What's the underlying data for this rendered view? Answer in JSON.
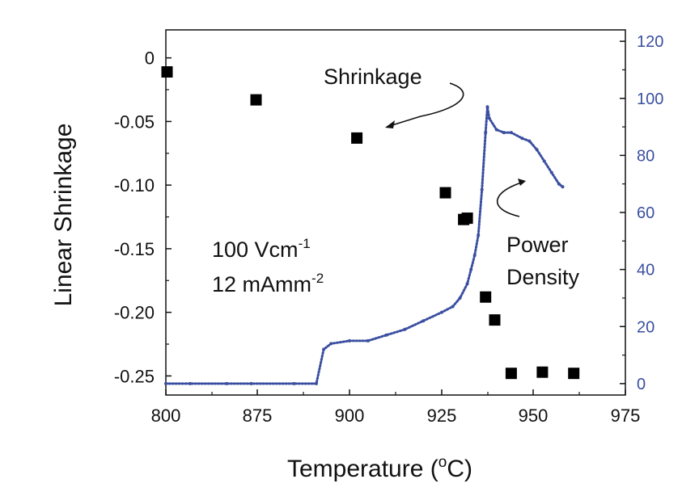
{
  "chart_data": {
    "type": "scatter",
    "title": "",
    "xlabel": "Temperature",
    "xlabel_unit_sup": "o",
    "xlabel_unit_after": "C",
    "ylabel": "Linear Shrinkage",
    "y2label": "",
    "xlim": [
      800,
      975
    ],
    "ylim": [
      -0.265,
      0.022
    ],
    "y2lim": [
      -4,
      124
    ],
    "xticks": [
      "800",
      "875",
      "900",
      "925",
      "950",
      "975"
    ],
    "yticks": [
      "0",
      "-0.05",
      "-0.10",
      "-0.15",
      "-0.20",
      "-0.25"
    ],
    "y2ticks": [
      "120",
      "100",
      "80",
      "60",
      "40",
      "20",
      "0"
    ],
    "colors": {
      "axis": "#111111",
      "power": "#3a4fa0",
      "shrinkage": "#000000"
    },
    "series": [
      {
        "name": "Shrinkage",
        "axis": "left",
        "marker": "square",
        "x": [
          801,
          874,
          902,
          926,
          931,
          932,
          937,
          939.5,
          944,
          952.5,
          961
        ],
        "y": [
          -0.011,
          -0.033,
          -0.063,
          -0.106,
          -0.127,
          -0.126,
          -0.188,
          -0.206,
          -0.248,
          -0.247,
          -0.248
        ]
      },
      {
        "name": "Power Density",
        "axis": "right",
        "marker": "dot",
        "x": [
          800,
          820,
          850,
          870,
          885,
          891,
          893,
          895,
          900,
          905,
          910,
          915,
          920,
          925,
          928,
          930,
          932,
          933,
          934,
          935,
          936,
          937,
          937.5,
          938,
          940,
          942,
          944,
          947,
          949,
          951,
          953,
          955,
          957,
          958
        ],
        "y": [
          0,
          0,
          0,
          0,
          0,
          0,
          12,
          14,
          15,
          15,
          17,
          19,
          22,
          25,
          27,
          30,
          35,
          40,
          45,
          52,
          68,
          88,
          97,
          93,
          89,
          88,
          88,
          86,
          85,
          82,
          78,
          74,
          70,
          69
        ]
      }
    ],
    "annotations": {
      "shrinkage_label": "Shrinkage",
      "power_label_line1": "Power",
      "power_label_line2": "Density",
      "cond1_text": "100 Vcm",
      "cond1_sup": "-1",
      "cond2_text": "12 mAmm",
      "cond2_sup": "-2"
    }
  }
}
